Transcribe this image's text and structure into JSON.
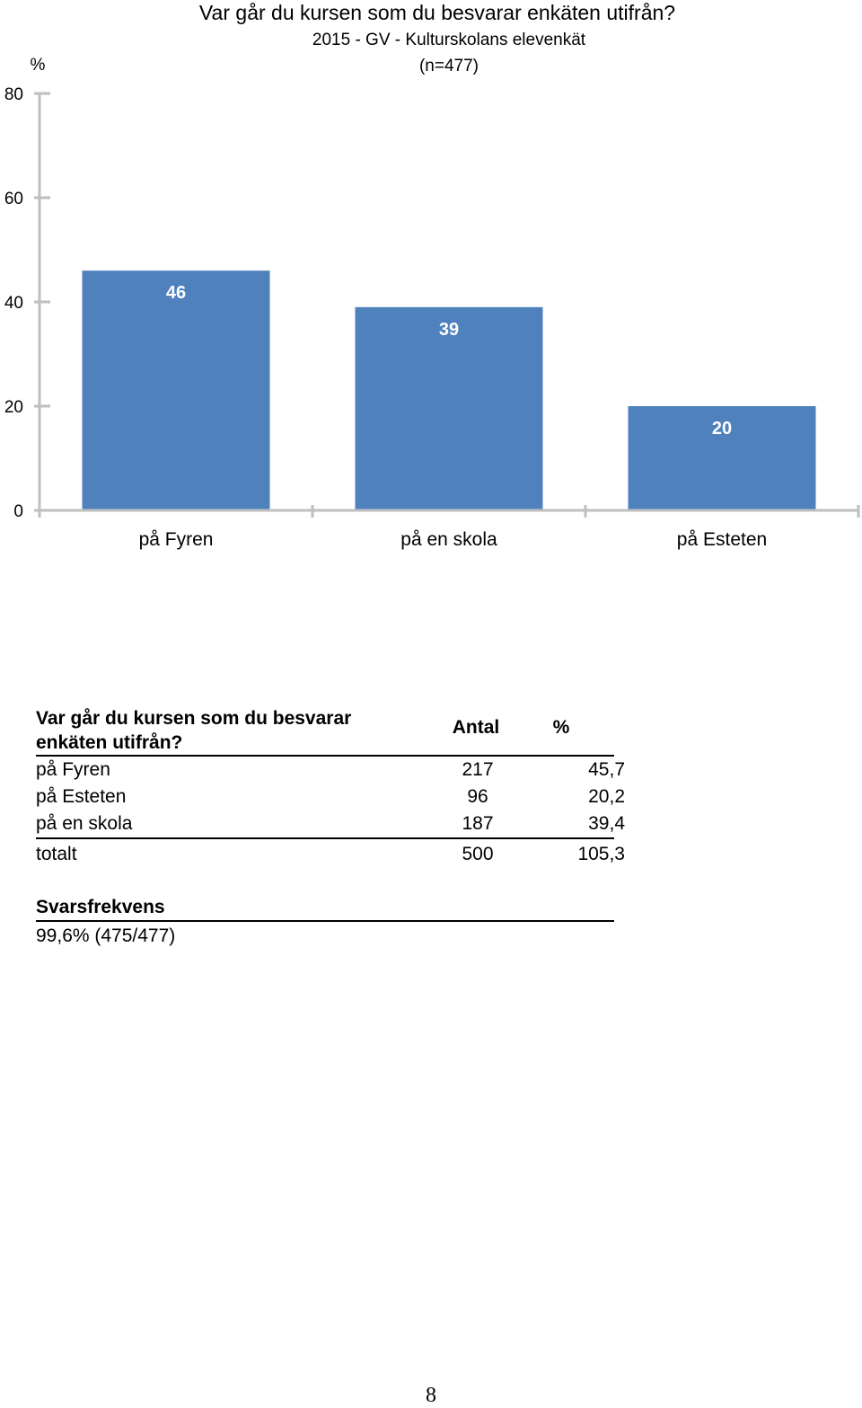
{
  "chart_data": {
    "type": "bar",
    "title": "Var går du kursen som du besvarar enkäten utifrån?",
    "subtitle": "2015 - GV - Kulturskolans elevenkät",
    "subtitle2": "(n=477)",
    "ylabel": "%",
    "xlabel": "",
    "categories": [
      "på Fyren",
      "på en skola",
      "på Esteten"
    ],
    "values": [
      46,
      39,
      20
    ],
    "data_labels": [
      "46",
      "39",
      "20"
    ],
    "ylim": [
      0,
      80
    ],
    "yticks": [
      0,
      20,
      40,
      60,
      80
    ],
    "bar_color": "#4f81bd",
    "axis_color": "#bfbfbf",
    "grid": false,
    "legend": "none"
  },
  "table": {
    "header_question": "Var går du kursen som du besvarar enkäten utifrån?",
    "header_antal": "Antal",
    "header_pct": "%",
    "rows": [
      {
        "label": "på Fyren",
        "antal": "217",
        "pct": "45,7"
      },
      {
        "label": "på Esteten",
        "antal": "96",
        "pct": "20,2"
      },
      {
        "label": "på en skola",
        "antal": "187",
        "pct": "39,4"
      }
    ],
    "total": {
      "label": "totalt",
      "antal": "500",
      "pct": "105,3"
    }
  },
  "svarsfrekvens": {
    "label": "Svarsfrekvens",
    "value": "99,6% (475/477)"
  },
  "page_number": "8"
}
